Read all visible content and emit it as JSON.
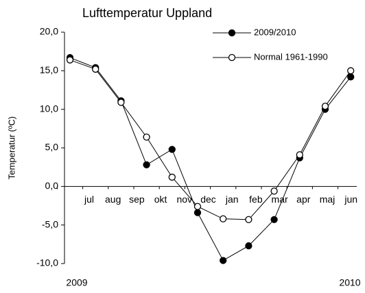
{
  "chart_data": {
    "type": "line",
    "title": "Lufttemperatur Uppland",
    "ylabel": "Temperatur (ºC)",
    "categories": [
      "jul",
      "aug",
      "sep",
      "okt",
      "nov",
      "dec",
      "jan",
      "feb",
      "mar",
      "apr",
      "maj",
      "jun"
    ],
    "year_labels": [
      "2009",
      "2010"
    ],
    "series": [
      {
        "name": "2009/2010",
        "color": "#000000",
        "marker": "filled",
        "values": [
          16.7,
          15.4,
          11.1,
          2.8,
          4.8,
          -3.4,
          -9.6,
          -7.7,
          -4.3,
          3.7,
          10.0,
          14.2
        ]
      },
      {
        "name": "Normal 1961-1990",
        "color": "#000000",
        "marker": "open",
        "values": [
          16.4,
          15.2,
          10.9,
          6.4,
          1.2,
          -2.6,
          -4.2,
          -4.3,
          -0.6,
          4.1,
          10.4,
          15.0
        ]
      }
    ],
    "ylim": [
      -10,
      20
    ],
    "yticks": [
      {
        "value": -10,
        "label": "-10,0"
      },
      {
        "value": -5,
        "label": "-5,0"
      },
      {
        "value": 0,
        "label": "0,0"
      },
      {
        "value": 5,
        "label": "5,0"
      },
      {
        "value": 10,
        "label": "10,0"
      },
      {
        "value": 15,
        "label": "15,0"
      },
      {
        "value": 20,
        "label": "20,0"
      }
    ],
    "legend": "upper right"
  }
}
